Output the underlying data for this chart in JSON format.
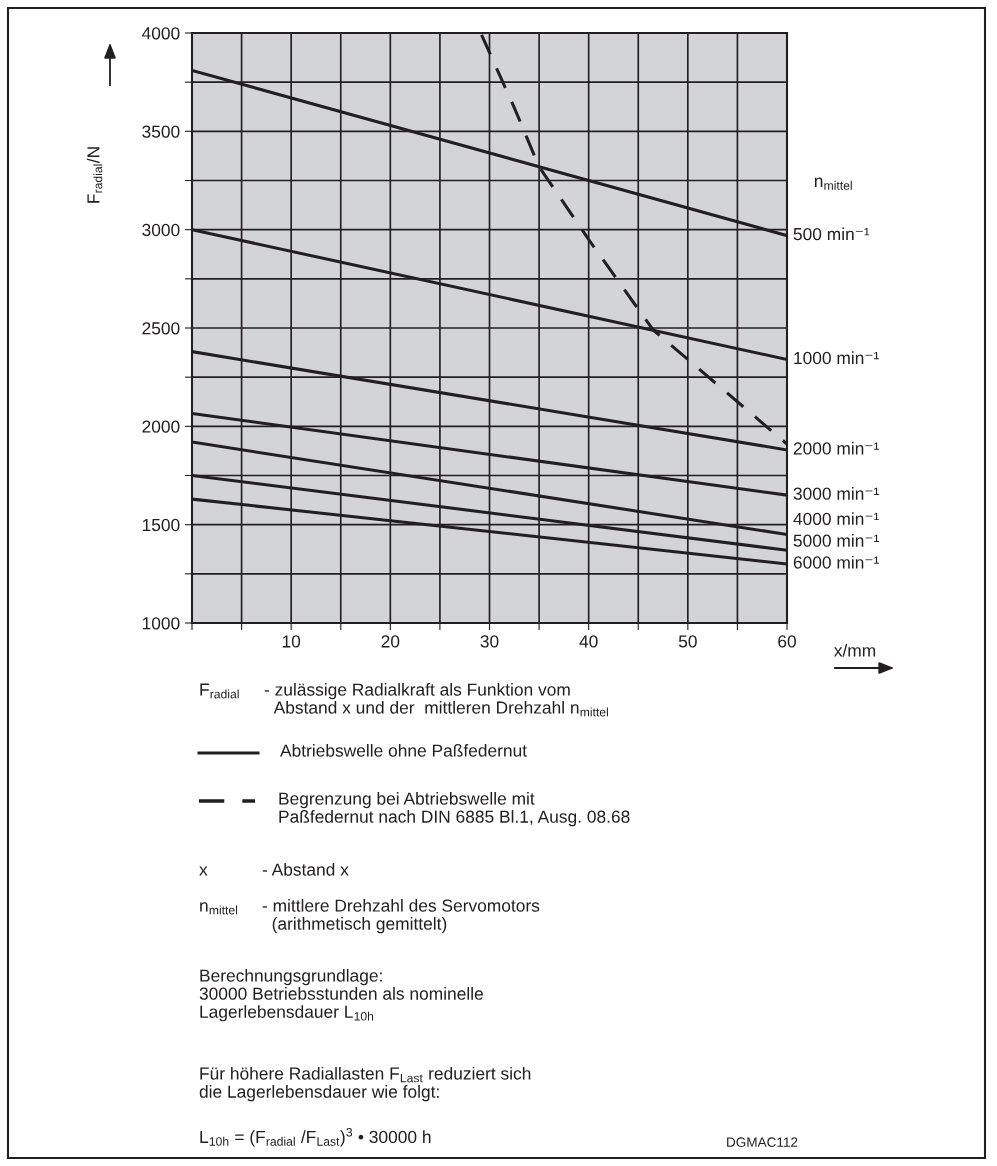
{
  "chart_data": {
    "type": "line",
    "ylabel": "F$_{radial}$/N",
    "xlabel": "x/mm",
    "legend_title": "n$_{mittel}$",
    "x": [
      0,
      60
    ],
    "series": [
      {
        "name": "500 min⁻¹",
        "color": "#231f20",
        "values": [
          3810,
          2970
        ],
        "line_style": "solid"
      },
      {
        "name": "1000 min⁻¹",
        "color": "#231f20",
        "values": [
          3000,
          2340
        ],
        "line_style": "solid"
      },
      {
        "name": "2000 min⁻¹",
        "color": "#231f20",
        "values": [
          2380,
          1880
        ],
        "line_style": "solid"
      },
      {
        "name": "3000 min⁻¹",
        "color": "#231f20",
        "values": [
          2065,
          1650
        ],
        "line_style": "solid"
      },
      {
        "name": "4000 min⁻¹",
        "color": "#231f20",
        "values": [
          1920,
          1450
        ],
        "line_style": "solid"
      },
      {
        "name": "5000 min⁻¹",
        "color": "#231f20",
        "values": [
          1750,
          1370
        ],
        "line_style": "solid"
      },
      {
        "name": "6000 min⁻¹",
        "color": "#231f20",
        "values": [
          1630,
          1300
        ],
        "line_style": "solid"
      },
      {
        "color": "#231f20",
        "line_style": "dashed",
        "x": [
          29.2,
          32.5,
          35,
          40,
          46.5,
          50,
          60
        ],
        "values": [
          3990,
          3620,
          3320,
          2950,
          2490,
          2340,
          1910
        ]
      }
    ],
    "xlim": [
      0,
      60
    ],
    "xticks": [
      {
        "value": 0,
        "label": null
      },
      {
        "value": 5,
        "label": null
      },
      10,
      {
        "value": 15,
        "label": null
      },
      20,
      {
        "value": 25,
        "label": null
      },
      30,
      {
        "value": 35,
        "label": null
      },
      40,
      {
        "value": 45,
        "label": null
      },
      50,
      {
        "value": 55,
        "label": null
      },
      60
    ],
    "ylim": [
      1000,
      4000
    ],
    "yticks": [
      1000,
      {
        "value": 1250,
        "label": null
      },
      1500,
      {
        "value": 1750,
        "label": null
      },
      2000,
      {
        "value": 2250,
        "label": null
      },
      2500,
      {
        "value": 2750,
        "label": null
      },
      3000,
      {
        "value": 3250,
        "label": null
      },
      3500,
      {
        "value": 3750,
        "label": null
      },
      4000
    ],
    "grid": true,
    "marker": "none",
    "annotations": [
      "F$_{radial}$",
      "- zulässige Radialkraft als Funktion vom\n  Abstand x und der  mittleren Drehzahl n$_{mittel}$",
      "Abtriebswelle ohne Paßfedernut",
      "Begrenzung bei Abtriebswelle mit\nPaßfedernut nach DIN 6885 Bl.1, Ausg. 08.68",
      "x",
      "- Abstand x",
      "n$_{mittel}$",
      "- mittlere Drehzahl des Servomotors\n  (arithmetisch gemittelt)",
      "Berechnungsgrundlage:\n30000 Betriebsstunden als nominelle\nLagerlebensdauer L$_{10h}$",
      "Für höhere Radiallasten F$_{Last}$ reduziert sich\ndie Lagerlebensdauer wie folgt:",
      "L$_{10h}$ = (F$_{radial}$ /F$_{Last}$)$^{3}$ • 30000 h",
      "DGMAC112"
    ]
  }
}
